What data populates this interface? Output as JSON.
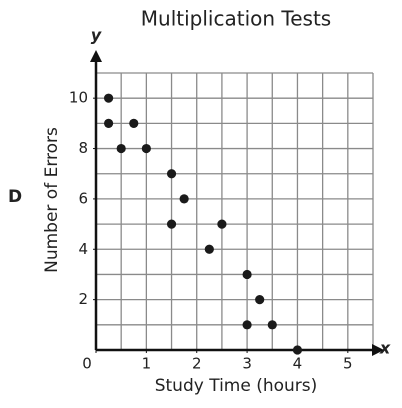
{
  "chart_data": {
    "type": "scatter",
    "title": "Multiplication Tests",
    "x_label": "Study Time (hours)",
    "y_label": "Number of Errors",
    "panel_label": "D",
    "x_axis_symbol": "x",
    "y_axis_symbol": "y",
    "x": [
      0.25,
      0.25,
      0.75,
      0.5,
      1,
      1.5,
      1.75,
      1.5,
      2.5,
      2.25,
      3,
      3.25,
      3,
      3.5,
      4
    ],
    "values": [
      10,
      9,
      9,
      8,
      8,
      7,
      6,
      5,
      5,
      4,
      3,
      2,
      1,
      1,
      0
    ],
    "color": "#1a1a1a",
    "xlim": [
      0,
      5.5
    ],
    "ylim": [
      0,
      11
    ],
    "xticks": [
      0,
      1,
      2,
      3,
      4,
      5
    ],
    "yticks": [
      2,
      4,
      6,
      8,
      10
    ],
    "xgrid": [
      0.5,
      1,
      1.5,
      2,
      2.5,
      3,
      3.5,
      4,
      4.5,
      5,
      5.5
    ],
    "ygrid": [
      1,
      2,
      3,
      4,
      5,
      6,
      7,
      8,
      9,
      10,
      11
    ],
    "grid": true
  }
}
